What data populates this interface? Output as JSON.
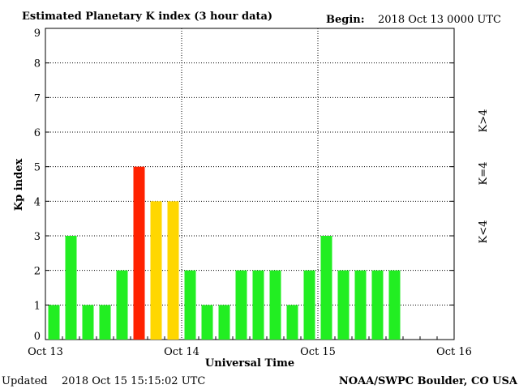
{
  "header": {
    "title": "Estimated Planetary K index (3 hour data)",
    "begin_label": "Begin:",
    "begin_value": "2018 Oct 13 0000 UTC"
  },
  "footer": {
    "updated_label": "Updated",
    "updated_value": "2018 Oct 15 15:15:02 UTC",
    "source": "NOAA/SWPC Boulder, CO USA"
  },
  "legend": {
    "entries": [
      {
        "label": "K<4",
        "color": "#22ee22"
      },
      {
        "label": "K=4",
        "color": "#ffd700"
      },
      {
        "label": "K>4",
        "color": "#ff2200"
      }
    ]
  },
  "chart_data": {
    "type": "bar",
    "title": "Estimated Planetary K index (3 hour data)",
    "xlabel": "Universal Time",
    "ylabel": "Kp index",
    "ylim": [
      0,
      9
    ],
    "yticks": [
      0,
      1,
      2,
      3,
      4,
      5,
      6,
      7,
      8,
      9
    ],
    "x_tick_labels": [
      "Oct 13",
      "Oct 14",
      "Oct 15",
      "Oct 16"
    ],
    "slots_total": 24,
    "grid": true,
    "categories": [
      "Oct 13 00",
      "Oct 13 03",
      "Oct 13 06",
      "Oct 13 09",
      "Oct 13 12",
      "Oct 13 15",
      "Oct 13 18",
      "Oct 13 21",
      "Oct 14 00",
      "Oct 14 03",
      "Oct 14 06",
      "Oct 14 09",
      "Oct 14 12",
      "Oct 14 15",
      "Oct 14 18",
      "Oct 14 21",
      "Oct 15 00",
      "Oct 15 03",
      "Oct 15 06",
      "Oct 15 09",
      "Oct 15 12"
    ],
    "values": [
      1,
      3,
      1,
      1,
      2,
      5,
      4,
      4,
      2,
      1,
      1,
      2,
      2,
      2,
      1,
      2,
      3,
      2,
      2,
      2,
      2
    ],
    "colors": {
      "low": "#22ee22",
      "equal": "#ffd700",
      "high": "#ff2200"
    }
  }
}
